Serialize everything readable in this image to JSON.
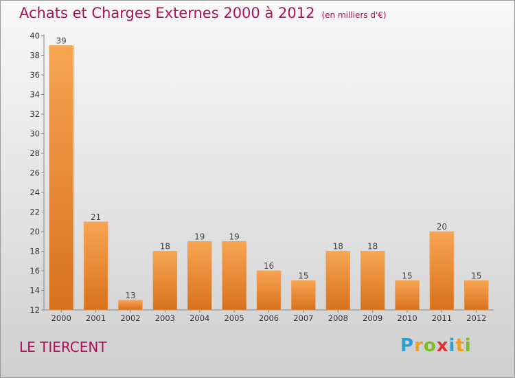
{
  "header": {
    "title": "Achats et Charges Externes 2000 à 2012",
    "subtitle": "(en milliers d'€)"
  },
  "footer": {
    "place": "LE TIERCENT",
    "logo_letters": [
      {
        "char": "P",
        "color": "#2a9fd6"
      },
      {
        "char": "r",
        "color": "#f0a020"
      },
      {
        "char": "o",
        "color": "#7cbb2a"
      },
      {
        "char": "x",
        "color": "#e03030"
      },
      {
        "char": "i",
        "color": "#2a9fd6"
      },
      {
        "char": "t",
        "color": "#f0a020"
      },
      {
        "char": "i",
        "color": "#7cbb2a"
      }
    ]
  },
  "chart_data": {
    "type": "bar",
    "title": "Achats et Charges Externes 2000 à 2012",
    "subtitle": "(en milliers d'€)",
    "categories": [
      "2000",
      "2001",
      "2002",
      "2003",
      "2004",
      "2005",
      "2006",
      "2007",
      "2008",
      "2009",
      "2010",
      "2011",
      "2012"
    ],
    "values": [
      39,
      21,
      13,
      18,
      19,
      19,
      16,
      15,
      18,
      18,
      15,
      20,
      15
    ],
    "ylim": [
      12,
      40
    ],
    "yticks": [
      12,
      14,
      16,
      18,
      20,
      22,
      24,
      26,
      28,
      30,
      32,
      34,
      36,
      38,
      40
    ],
    "grid": false,
    "bar_color": "#f0913a"
  }
}
